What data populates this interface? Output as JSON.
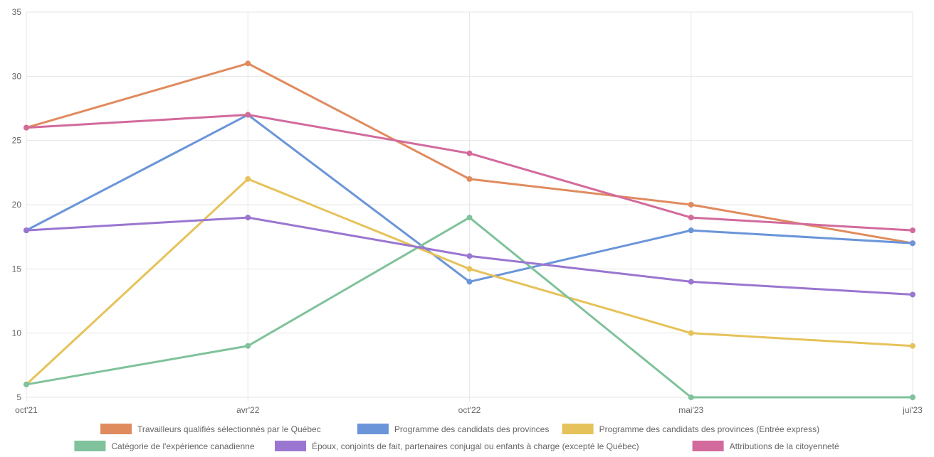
{
  "chart_data": {
    "type": "line",
    "x": [
      "oct'21",
      "avr'22",
      "oct'22",
      "mai'23",
      "jui'23"
    ],
    "ylim": [
      5,
      35
    ],
    "yticks": [
      "5",
      "10",
      "15",
      "20",
      "25",
      "30",
      "35"
    ],
    "grid": true,
    "legend_position": "bottom",
    "series": [
      {
        "name": "Travailleurs qualifiés sélectionnés par le Québec",
        "color": "#e08b5e",
        "values": [
          26,
          31,
          22,
          20,
          17
        ]
      },
      {
        "name": "Programme des candidats des provinces",
        "color": "#6a95d9",
        "values": [
          18,
          27,
          14,
          18,
          17
        ]
      },
      {
        "name": "Programme des candidats des provinces (Entrée express)",
        "color": "#e6c25a",
        "values": [
          6,
          22,
          15,
          10,
          9
        ]
      },
      {
        "name": "Catégorie de l'expérience canadienne",
        "color": "#7fc29b",
        "values": [
          6,
          9,
          19,
          5,
          5
        ]
      },
      {
        "name": "Époux, conjoints de fait, partenaires conjugal ou enfants à charge (excepté le Québec)",
        "color": "#9a76d0",
        "values": [
          18,
          19,
          16,
          14,
          13
        ]
      },
      {
        "name": "Attributions de la citoyenneté",
        "color": "#d26a9c",
        "values": [
          26,
          27,
          24,
          19,
          18
        ]
      }
    ]
  }
}
